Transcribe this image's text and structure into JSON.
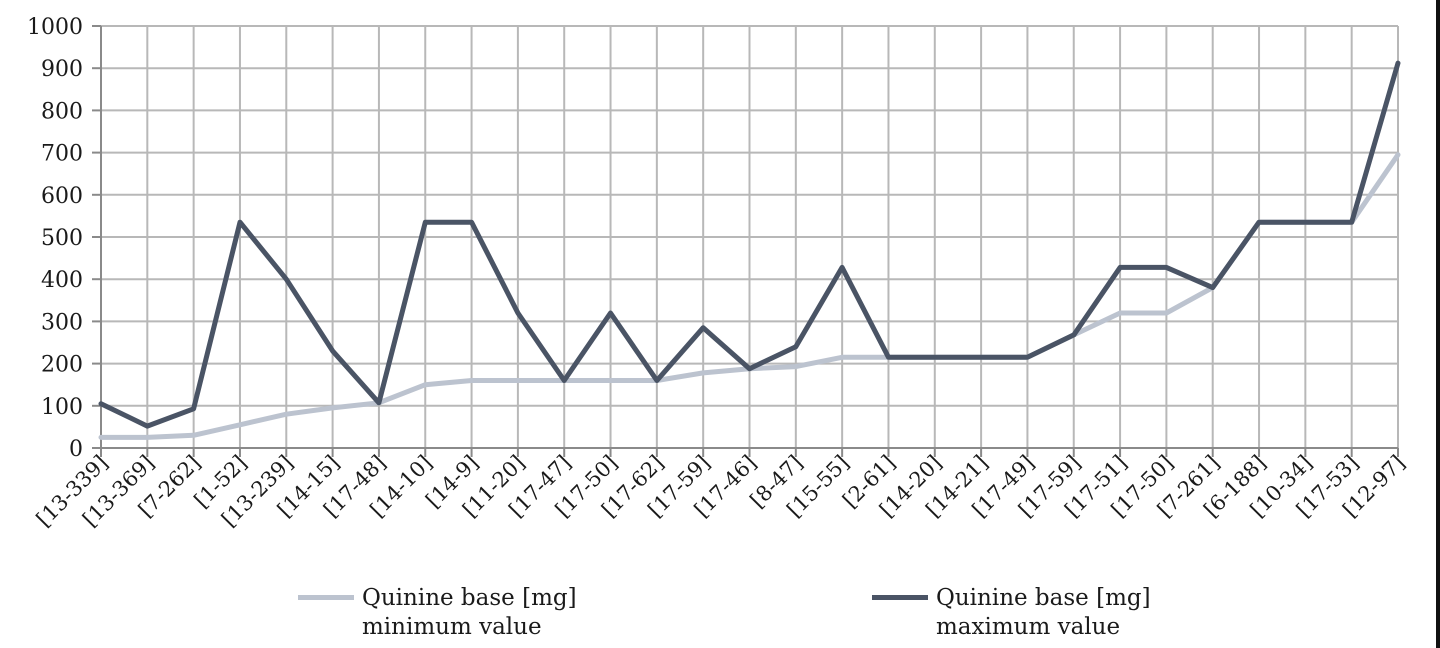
{
  "chart_data": {
    "type": "line",
    "categories": [
      "[13-339]",
      "[13-369]",
      "[7-262]",
      "[1-52]",
      "[13-239]",
      "[14-15]",
      "[17-48]",
      "[14-10]",
      "[14-9]",
      "[11-20]",
      "[17-47]",
      "[17-50]",
      "[17-62]",
      "[17-59]",
      "[17-46]",
      "[8-47]",
      "[15-55]",
      "[2-61]",
      "[14-20]",
      "[14-21]",
      "[17-49]",
      "[17-59]",
      "[17-51]",
      "[17-50]",
      "[7-261]",
      "[6-188]",
      "[10-34]",
      "[17-53]",
      "[12-97]"
    ],
    "series": [
      {
        "name_line1": "Quinine base [mg]",
        "name_line2": "minimum value",
        "color": "#bcc3cf",
        "values": [
          25,
          25,
          30,
          55,
          80,
          95,
          107,
          150,
          160,
          160,
          160,
          160,
          160,
          178,
          188,
          193,
          215,
          215,
          215,
          215,
          215,
          268,
          320,
          320,
          380,
          535,
          535,
          535,
          695
        ]
      },
      {
        "name_line1": "Quinine base [mg]",
        "name_line2": "maximum value",
        "color": "#4a5465",
        "values": [
          105,
          52,
          93,
          535,
          400,
          230,
          107,
          535,
          535,
          320,
          160,
          320,
          160,
          285,
          188,
          240,
          428,
          215,
          215,
          215,
          215,
          268,
          428,
          428,
          380,
          535,
          535,
          535,
          912
        ]
      }
    ],
    "yticks": [
      0,
      100,
      200,
      300,
      400,
      500,
      600,
      700,
      800,
      900,
      1000
    ],
    "ylim": [
      0,
      1000
    ],
    "grid": true,
    "legend_position": "bottom"
  }
}
